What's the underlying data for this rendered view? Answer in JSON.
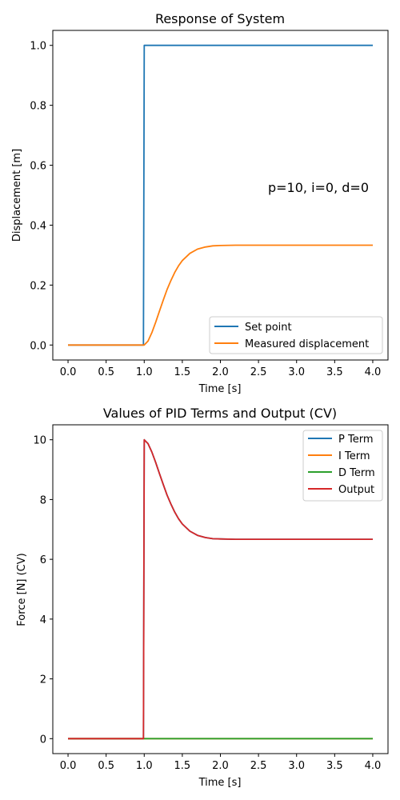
{
  "chart_data": [
    {
      "type": "line",
      "title": "Response of System",
      "xlabel": "Time [s]",
      "ylabel": "Displacement [m]",
      "xlim": [
        -0.2,
        4.2
      ],
      "ylim": [
        -0.05,
        1.05
      ],
      "xticks": [
        0.0,
        0.5,
        1.0,
        1.5,
        2.0,
        2.5,
        3.0,
        3.5,
        4.0
      ],
      "xtick_labels": [
        "0.0",
        "0.5",
        "1.0",
        "1.5",
        "2.0",
        "2.5",
        "3.0",
        "3.5",
        "4.0"
      ],
      "yticks": [
        0.0,
        0.2,
        0.4,
        0.6,
        0.8,
        1.0
      ],
      "ytick_labels": [
        "0.0",
        "0.2",
        "0.4",
        "0.6",
        "0.8",
        "1.0"
      ],
      "grid": false,
      "legend_position": "lower-right",
      "annotation": "p=10, i=0, d=0",
      "series": [
        {
          "name": "Set point",
          "color": "#1f77b4",
          "x": [
            0.0,
            0.99,
            1.0,
            4.0
          ],
          "y": [
            0.0,
            0.0,
            1.0,
            1.0
          ]
        },
        {
          "name": "Measured displacement",
          "color": "#ff7f0e",
          "x": [
            0.0,
            1.0,
            1.05,
            1.1,
            1.15,
            1.2,
            1.25,
            1.3,
            1.35,
            1.4,
            1.45,
            1.5,
            1.6,
            1.7,
            1.8,
            1.9,
            2.0,
            2.2,
            2.5,
            3.0,
            3.5,
            4.0
          ],
          "y": [
            0.0,
            0.0,
            0.013,
            0.041,
            0.076,
            0.113,
            0.15,
            0.185,
            0.215,
            0.242,
            0.264,
            0.282,
            0.306,
            0.32,
            0.327,
            0.331,
            0.332,
            0.333,
            0.333,
            0.333,
            0.333,
            0.333
          ]
        }
      ]
    },
    {
      "type": "line",
      "title": "Values of PID Terms and Output (CV)",
      "xlabel": "Time [s]",
      "ylabel": "Force [N] (CV)",
      "xlim": [
        -0.2,
        4.2
      ],
      "ylim": [
        -0.5,
        10.5
      ],
      "xticks": [
        0.0,
        0.5,
        1.0,
        1.5,
        2.0,
        2.5,
        3.0,
        3.5,
        4.0
      ],
      "xtick_labels": [
        "0.0",
        "0.5",
        "1.0",
        "1.5",
        "2.0",
        "2.5",
        "3.0",
        "3.5",
        "4.0"
      ],
      "yticks": [
        0,
        2,
        4,
        6,
        8,
        10
      ],
      "ytick_labels": [
        "0",
        "2",
        "4",
        "6",
        "8",
        "10"
      ],
      "grid": false,
      "legend_position": "upper-right",
      "series": [
        {
          "name": "P Term",
          "color": "#1f77b4",
          "x": [
            0.0,
            0.99,
            1.0,
            1.05,
            1.1,
            1.15,
            1.2,
            1.25,
            1.3,
            1.35,
            1.4,
            1.45,
            1.5,
            1.6,
            1.7,
            1.8,
            1.9,
            2.0,
            2.2,
            2.5,
            3.0,
            3.5,
            4.0
          ],
          "y": [
            0.0,
            0.0,
            10.0,
            9.87,
            9.59,
            9.24,
            8.87,
            8.5,
            8.15,
            7.85,
            7.58,
            7.36,
            7.18,
            6.94,
            6.8,
            6.73,
            6.69,
            6.68,
            6.67,
            6.67,
            6.67,
            6.67,
            6.67
          ]
        },
        {
          "name": "I Term",
          "color": "#ff7f0e",
          "x": [
            0.0,
            4.0
          ],
          "y": [
            0.0,
            0.0
          ]
        },
        {
          "name": "D Term",
          "color": "#2ca02c",
          "x": [
            0.0,
            4.0
          ],
          "y": [
            0.0,
            0.0
          ]
        },
        {
          "name": "Output",
          "color": "#d62728",
          "x": [
            0.0,
            0.99,
            1.0,
            1.05,
            1.1,
            1.15,
            1.2,
            1.25,
            1.3,
            1.35,
            1.4,
            1.45,
            1.5,
            1.6,
            1.7,
            1.8,
            1.9,
            2.0,
            2.2,
            2.5,
            3.0,
            3.5,
            4.0
          ],
          "y": [
            0.0,
            0.0,
            10.0,
            9.87,
            9.59,
            9.24,
            8.87,
            8.5,
            8.15,
            7.85,
            7.58,
            7.36,
            7.18,
            6.94,
            6.8,
            6.73,
            6.69,
            6.68,
            6.67,
            6.67,
            6.67,
            6.67,
            6.67
          ]
        }
      ]
    }
  ]
}
